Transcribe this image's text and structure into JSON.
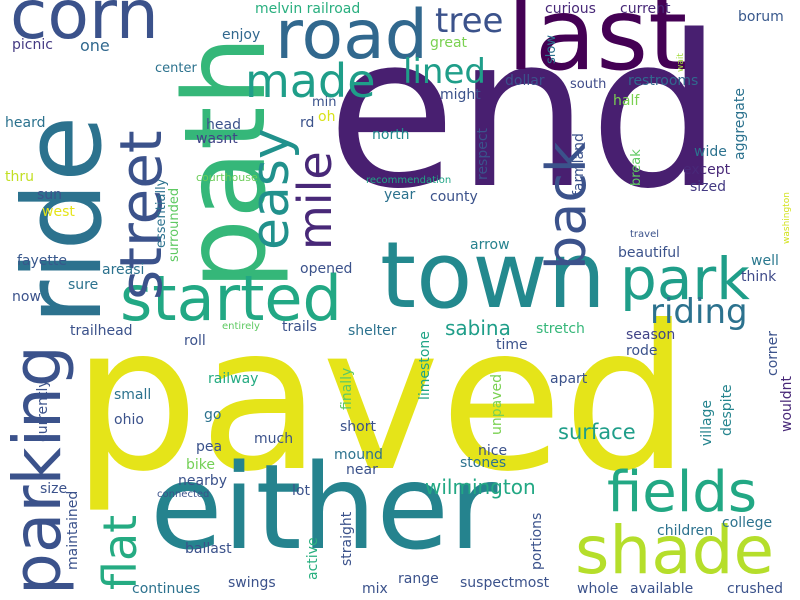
{
  "words": [
    {
      "text": "end",
      "color": "#481f70"
    },
    {
      "text": "paved",
      "color": "#e5e419"
    },
    {
      "text": "town",
      "color": "#23898e"
    },
    {
      "text": "either",
      "color": "#25838e"
    },
    {
      "text": "ride",
      "color": "#2c728e"
    },
    {
      "text": "path",
      "color": "#35b779"
    },
    {
      "text": "last",
      "color": "#440154"
    },
    {
      "text": "road",
      "color": "#31688e"
    },
    {
      "text": "corn",
      "color": "#3b528b"
    },
    {
      "text": "parking",
      "color": "#3b528b"
    },
    {
      "text": "shade",
      "color": "#b5de2b"
    },
    {
      "text": "fields",
      "color": "#22a884"
    },
    {
      "text": "started",
      "color": "#22a884"
    },
    {
      "text": "park",
      "color": "#1f9e89"
    },
    {
      "text": "street",
      "color": "#3b528b"
    },
    {
      "text": "back",
      "color": "#3b528b"
    },
    {
      "text": "made",
      "color": "#1f9e89"
    },
    {
      "text": "easy",
      "color": "#21918c"
    },
    {
      "text": "mile",
      "color": "#482878"
    },
    {
      "text": "flat",
      "color": "#25ab82"
    },
    {
      "text": "tree",
      "color": "#3b528b"
    },
    {
      "text": "lined",
      "color": "#1f9e89"
    },
    {
      "text": "riding",
      "color": "#2c728e"
    },
    {
      "text": "sabina",
      "color": "#1f9e89"
    },
    {
      "text": "surface",
      "color": "#1f9e89"
    },
    {
      "text": "wilmington",
      "color": "#22a884"
    },
    {
      "text": "melvin railroad",
      "color": "#29af7f"
    },
    {
      "text": "curious",
      "color": "#482878"
    },
    {
      "text": "current",
      "color": "#482878"
    },
    {
      "text": "borum",
      "color": "#38588c"
    },
    {
      "text": "picnic",
      "color": "#443a83"
    },
    {
      "text": "one",
      "color": "#31688e"
    },
    {
      "text": "enjoy",
      "color": "#31688e"
    },
    {
      "text": "great",
      "color": "#7ad151"
    },
    {
      "text": "slow",
      "color": "#2c728e"
    },
    {
      "text": "wait",
      "color": "#a0da39"
    },
    {
      "text": "dollar",
      "color": "#3b528b"
    },
    {
      "text": "aggregate",
      "color": "#2c728e"
    },
    {
      "text": "center",
      "color": "#2c728e"
    },
    {
      "text": "restrooms",
      "color": "#31688e"
    },
    {
      "text": "south",
      "color": "#3e4a89"
    },
    {
      "text": "might",
      "color": "#3b528b"
    },
    {
      "text": "half",
      "color": "#7ad151"
    },
    {
      "text": "min",
      "color": "#3b528b"
    },
    {
      "text": "oh",
      "color": "#d8e219"
    },
    {
      "text": "heard",
      "color": "#2c728e"
    },
    {
      "text": "head",
      "color": "#3b528b"
    },
    {
      "text": "wasnt",
      "color": "#414487"
    },
    {
      "text": "rd",
      "color": "#3b528b"
    },
    {
      "text": "north",
      "color": "#238a8d"
    },
    {
      "text": "respect",
      "color": "#3b528b"
    },
    {
      "text": "farmland",
      "color": "#3b528b"
    },
    {
      "text": "break",
      "color": "#5ec962"
    },
    {
      "text": "wide",
      "color": "#2c728e"
    },
    {
      "text": "except",
      "color": "#482878"
    },
    {
      "text": "sized",
      "color": "#443a83"
    },
    {
      "text": "washington",
      "color": "#d2e21b"
    },
    {
      "text": "thru",
      "color": "#c2df23"
    },
    {
      "text": "sun",
      "color": "#3b528b"
    },
    {
      "text": "west",
      "color": "#e5e419"
    },
    {
      "text": "essentially",
      "color": "#2c728e"
    },
    {
      "text": "surrounded",
      "color": "#5ec962"
    },
    {
      "text": "courthouse",
      "color": "#6ccd5a"
    },
    {
      "text": "recommendation",
      "color": "#20a486"
    },
    {
      "text": "year",
      "color": "#2c728e"
    },
    {
      "text": "county",
      "color": "#3b528b"
    },
    {
      "text": "travel",
      "color": "#3b528b"
    },
    {
      "text": "fayette",
      "color": "#38588c"
    },
    {
      "text": "areasi",
      "color": "#2c728e"
    },
    {
      "text": "arrow",
      "color": "#26828e"
    },
    {
      "text": "beautiful",
      "color": "#3b528b"
    },
    {
      "text": "well",
      "color": "#2a788e"
    },
    {
      "text": "think",
      "color": "#3e4a89"
    },
    {
      "text": "sure",
      "color": "#2c728e"
    },
    {
      "text": "opened",
      "color": "#3b528b"
    },
    {
      "text": "now",
      "color": "#3b528b"
    },
    {
      "text": "trailhead",
      "color": "#3b528b"
    },
    {
      "text": "trails",
      "color": "#3b528b"
    },
    {
      "text": "entirely",
      "color": "#5ec962"
    },
    {
      "text": "shelter",
      "color": "#2c728e"
    },
    {
      "text": "stretch",
      "color": "#35b779"
    },
    {
      "text": "season",
      "color": "#414487"
    },
    {
      "text": "rode",
      "color": "#3b528b"
    },
    {
      "text": "time",
      "color": "#3b528b"
    },
    {
      "text": "corner",
      "color": "#3b528b"
    },
    {
      "text": "roll",
      "color": "#3b528b"
    },
    {
      "text": "railway",
      "color": "#25ab82"
    },
    {
      "text": "finally",
      "color": "#5ec962"
    },
    {
      "text": "limestone",
      "color": "#20a486"
    },
    {
      "text": "apart",
      "color": "#3b528b"
    },
    {
      "text": "village",
      "color": "#25848e"
    },
    {
      "text": "despite",
      "color": "#25848e"
    },
    {
      "text": "wouldnt",
      "color": "#482878"
    },
    {
      "text": "currently",
      "color": "#3b528b"
    },
    {
      "text": "small",
      "color": "#2c728e"
    },
    {
      "text": "ohio",
      "color": "#3b528b"
    },
    {
      "text": "go",
      "color": "#2c728e"
    },
    {
      "text": "pea",
      "color": "#3b528b"
    },
    {
      "text": "much",
      "color": "#3b528b"
    },
    {
      "text": "short",
      "color": "#3b528b"
    },
    {
      "text": "unpaved",
      "color": "#7ad151"
    },
    {
      "text": "nice",
      "color": "#3b528b"
    },
    {
      "text": "stones",
      "color": "#2c728e"
    },
    {
      "text": "bike",
      "color": "#73d056"
    },
    {
      "text": "mound",
      "color": "#2c728e"
    },
    {
      "text": "near",
      "color": "#3b528b"
    },
    {
      "text": "size",
      "color": "#3b528b"
    },
    {
      "text": "nearby",
      "color": "#3b528b"
    },
    {
      "text": "connected",
      "color": "#3b528b"
    },
    {
      "text": "lot",
      "color": "#3b528b"
    },
    {
      "text": "maintained",
      "color": "#3b528b"
    },
    {
      "text": "ballast",
      "color": "#3b528b"
    },
    {
      "text": "active",
      "color": "#29af7f"
    },
    {
      "text": "straight",
      "color": "#3b528b"
    },
    {
      "text": "portions",
      "color": "#3b528b"
    },
    {
      "text": "children",
      "color": "#2c728e"
    },
    {
      "text": "college",
      "color": "#2c728e"
    },
    {
      "text": "continues",
      "color": "#2c728e"
    },
    {
      "text": "swings",
      "color": "#3b528b"
    },
    {
      "text": "mix",
      "color": "#3b528b"
    },
    {
      "text": "range",
      "color": "#3b528b"
    },
    {
      "text": "suspectmost",
      "color": "#3b528b"
    },
    {
      "text": "whole",
      "color": "#3b528b"
    },
    {
      "text": "available",
      "color": "#3b528b"
    },
    {
      "text": "crushed",
      "color": "#3b528b"
    }
  ]
}
